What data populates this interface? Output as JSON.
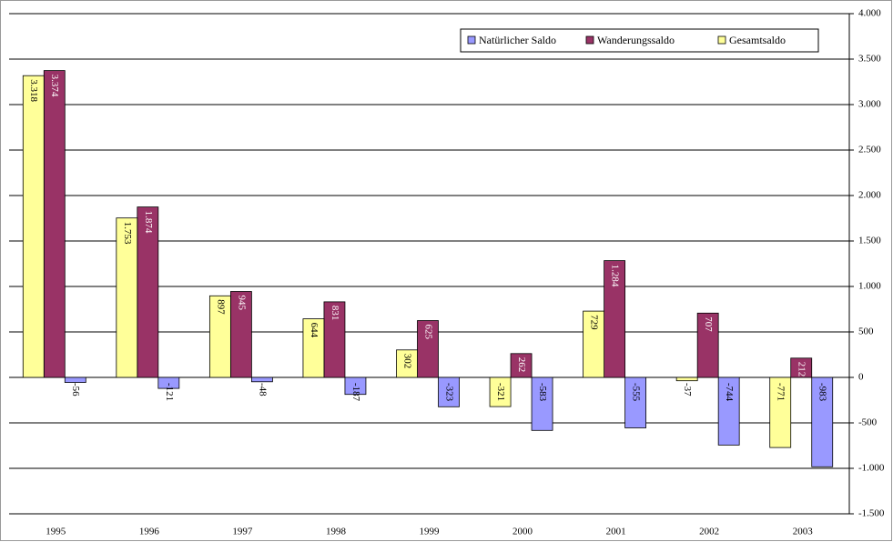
{
  "chart_data": {
    "type": "bar",
    "categories": [
      "1995",
      "1996",
      "1997",
      "1998",
      "1999",
      "2000",
      "2001",
      "2002",
      "2003"
    ],
    "series": [
      {
        "name": "Natürlicher Saldo",
        "color": "#9999ff",
        "values": [
          -56,
          -121,
          -48,
          -187,
          -323,
          -583,
          -555,
          -744,
          -983
        ],
        "value_labels": [
          "-56",
          "-121",
          "-48",
          "-187",
          "-323",
          "-583",
          "-555",
          "-744",
          "-983"
        ]
      },
      {
        "name": "Wanderungssaldo",
        "color": "#993366",
        "values": [
          3374,
          1874,
          945,
          831,
          625,
          262,
          1284,
          707,
          212
        ],
        "value_labels": [
          "3.374",
          "1.874",
          "945",
          "831",
          "625",
          "262",
          "1.284",
          "707",
          "212"
        ]
      },
      {
        "name": "Gesamtsaldo",
        "color": "#ffff99",
        "values": [
          3318,
          1753,
          897,
          644,
          302,
          -321,
          729,
          -37,
          -771
        ],
        "value_labels": [
          "3.318",
          "1.753",
          "897",
          "644",
          "302",
          "-321",
          "729",
          "-37",
          "-771"
        ]
      }
    ],
    "ylim": [
      -1500,
      4000
    ],
    "yticks": [
      {
        "value": -1500,
        "label": "-1.500"
      },
      {
        "value": -1000,
        "label": "-1.000"
      },
      -500,
      0,
      500,
      {
        "value": 1000,
        "label": "1.000"
      },
      {
        "value": 1500,
        "label": "1.500"
      },
      {
        "value": 2000,
        "label": "2.000"
      },
      {
        "value": 2500,
        "label": "2.500"
      },
      {
        "value": 3000,
        "label": "3.000"
      },
      {
        "value": 3500,
        "label": "3.500"
      },
      {
        "value": 4000,
        "label": "4.000"
      }
    ],
    "grid": true,
    "legend": "top-right"
  }
}
